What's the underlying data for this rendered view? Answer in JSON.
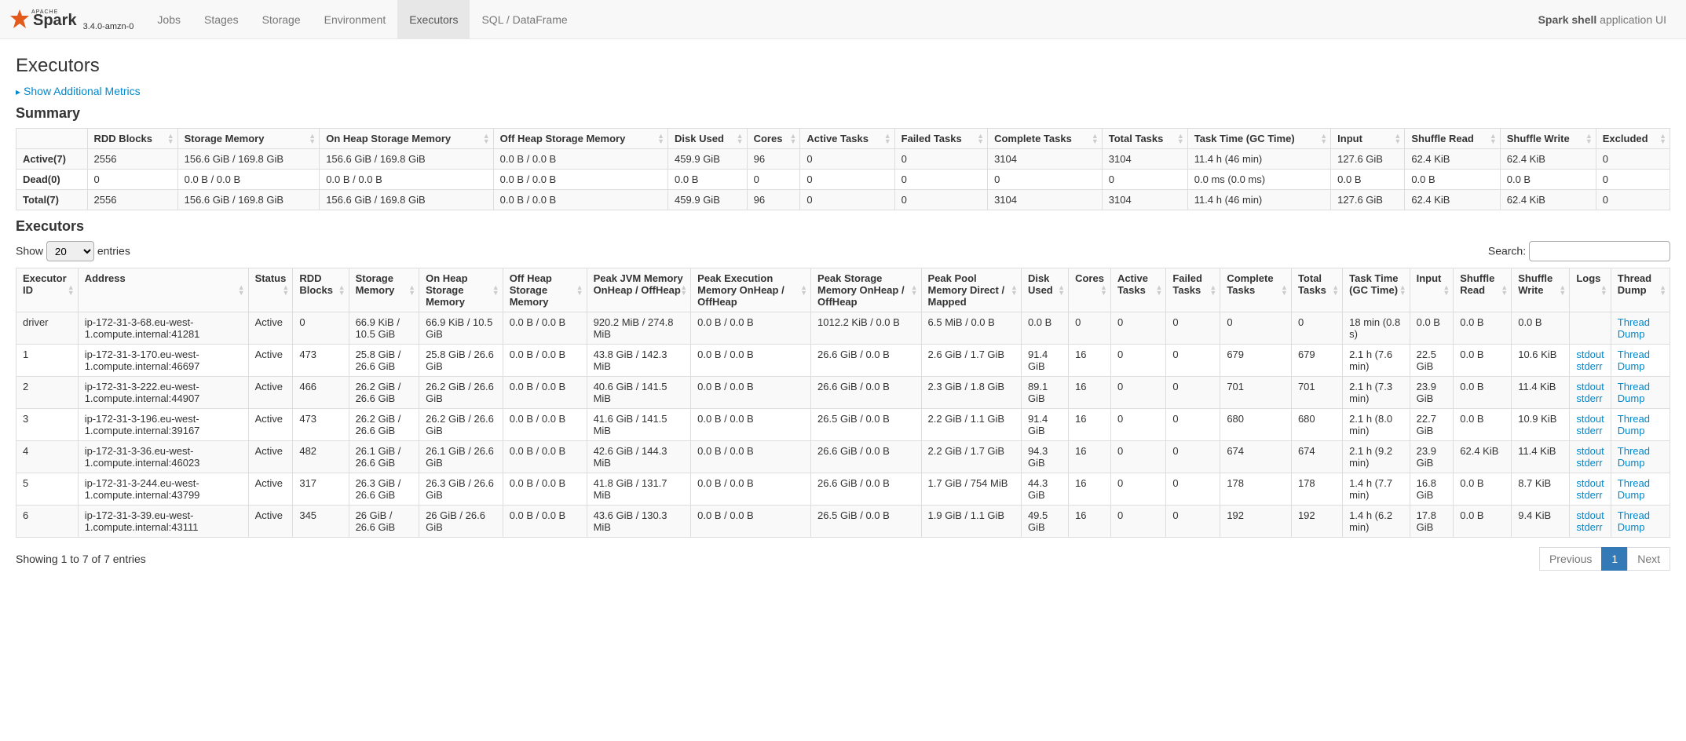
{
  "brand": {
    "apache": "APACHE",
    "name": "Spark",
    "version": "3.4.0-amzn-0"
  },
  "nav": {
    "tabs": [
      "Jobs",
      "Stages",
      "Storage",
      "Environment",
      "Executors",
      "SQL / DataFrame"
    ],
    "active_index": 4
  },
  "app_label": {
    "name": "Spark shell",
    "suffix": "application UI"
  },
  "page_title": "Executors",
  "show_metrics_label": "Show Additional Metrics",
  "summary": {
    "heading": "Summary",
    "columns": [
      "",
      "RDD Blocks",
      "Storage Memory",
      "On Heap Storage Memory",
      "Off Heap Storage Memory",
      "Disk Used",
      "Cores",
      "Active Tasks",
      "Failed Tasks",
      "Complete Tasks",
      "Total Tasks",
      "Task Time (GC Time)",
      "Input",
      "Shuffle Read",
      "Shuffle Write",
      "Excluded"
    ],
    "rows": [
      [
        "Active(7)",
        "2556",
        "156.6 GiB / 169.8 GiB",
        "156.6 GiB / 169.8 GiB",
        "0.0 B / 0.0 B",
        "459.9 GiB",
        "96",
        "0",
        "0",
        "3104",
        "3104",
        "11.4 h (46 min)",
        "127.6 GiB",
        "62.4 KiB",
        "62.4 KiB",
        "0"
      ],
      [
        "Dead(0)",
        "0",
        "0.0 B / 0.0 B",
        "0.0 B / 0.0 B",
        "0.0 B / 0.0 B",
        "0.0 B",
        "0",
        "0",
        "0",
        "0",
        "0",
        "0.0 ms (0.0 ms)",
        "0.0 B",
        "0.0 B",
        "0.0 B",
        "0"
      ],
      [
        "Total(7)",
        "2556",
        "156.6 GiB / 169.8 GiB",
        "156.6 GiB / 169.8 GiB",
        "0.0 B / 0.0 B",
        "459.9 GiB",
        "96",
        "0",
        "0",
        "3104",
        "3104",
        "11.4 h (46 min)",
        "127.6 GiB",
        "62.4 KiB",
        "62.4 KiB",
        "0"
      ]
    ]
  },
  "executors_section": {
    "heading": "Executors",
    "show_label_prefix": "Show",
    "show_label_suffix": "entries",
    "page_size": "20",
    "search_label": "Search:",
    "columns": [
      "Executor ID",
      "Address",
      "Status",
      "RDD Blocks",
      "Storage Memory",
      "On Heap Storage Memory",
      "Off Heap Storage Memory",
      "Peak JVM Memory OnHeap / OffHeap",
      "Peak Execution Memory OnHeap / OffHeap",
      "Peak Storage Memory OnHeap / OffHeap",
      "Peak Pool Memory Direct / Mapped",
      "Disk Used",
      "Cores",
      "Active Tasks",
      "Failed Tasks",
      "Complete Tasks",
      "Total Tasks",
      "Task Time (GC Time)",
      "Input",
      "Shuffle Read",
      "Shuffle Write",
      "Logs",
      "Thread Dump"
    ],
    "rows": [
      {
        "id": "driver",
        "addr": "ip-172-31-3-68.eu-west-1.compute.internal:41281",
        "status": "Active",
        "rdd": "0",
        "storage": "66.9 KiB / 10.5 GiB",
        "onheap": "66.9 KiB / 10.5 GiB",
        "offheap": "0.0 B / 0.0 B",
        "peak_jvm": "920.2 MiB / 274.8 MiB",
        "peak_exec": "0.0 B / 0.0 B",
        "peak_store": "1012.2 KiB / 0.0 B",
        "peak_pool": "6.5 MiB / 0.0 B",
        "disk": "0.0 B",
        "cores": "0",
        "active": "0",
        "failed": "0",
        "complete": "0",
        "total": "0",
        "task": "18 min (0.8 s)",
        "input": "0.0 B",
        "sr": "0.0 B",
        "sw": "0.0 B",
        "logs": [],
        "thread": "Thread Dump"
      },
      {
        "id": "1",
        "addr": "ip-172-31-3-170.eu-west-1.compute.internal:46697",
        "status": "Active",
        "rdd": "473",
        "storage": "25.8 GiB / 26.6 GiB",
        "onheap": "25.8 GiB / 26.6 GiB",
        "offheap": "0.0 B / 0.0 B",
        "peak_jvm": "43.8 GiB / 142.3 MiB",
        "peak_exec": "0.0 B / 0.0 B",
        "peak_store": "26.6 GiB / 0.0 B",
        "peak_pool": "2.6 GiB / 1.7 GiB",
        "disk": "91.4 GiB",
        "cores": "16",
        "active": "0",
        "failed": "0",
        "complete": "679",
        "total": "679",
        "task": "2.1 h (7.6 min)",
        "input": "22.5 GiB",
        "sr": "0.0 B",
        "sw": "10.6 KiB",
        "logs": [
          "stdout",
          "stderr"
        ],
        "thread": "Thread Dump"
      },
      {
        "id": "2",
        "addr": "ip-172-31-3-222.eu-west-1.compute.internal:44907",
        "status": "Active",
        "rdd": "466",
        "storage": "26.2 GiB / 26.6 GiB",
        "onheap": "26.2 GiB / 26.6 GiB",
        "offheap": "0.0 B / 0.0 B",
        "peak_jvm": "40.6 GiB / 141.5 MiB",
        "peak_exec": "0.0 B / 0.0 B",
        "peak_store": "26.6 GiB / 0.0 B",
        "peak_pool": "2.3 GiB / 1.8 GiB",
        "disk": "89.1 GiB",
        "cores": "16",
        "active": "0",
        "failed": "0",
        "complete": "701",
        "total": "701",
        "task": "2.1 h (7.3 min)",
        "input": "23.9 GiB",
        "sr": "0.0 B",
        "sw": "11.4 KiB",
        "logs": [
          "stdout",
          "stderr"
        ],
        "thread": "Thread Dump"
      },
      {
        "id": "3",
        "addr": "ip-172-31-3-196.eu-west-1.compute.internal:39167",
        "status": "Active",
        "rdd": "473",
        "storage": "26.2 GiB / 26.6 GiB",
        "onheap": "26.2 GiB / 26.6 GiB",
        "offheap": "0.0 B / 0.0 B",
        "peak_jvm": "41.6 GiB / 141.5 MiB",
        "peak_exec": "0.0 B / 0.0 B",
        "peak_store": "26.5 GiB / 0.0 B",
        "peak_pool": "2.2 GiB / 1.1 GiB",
        "disk": "91.4 GiB",
        "cores": "16",
        "active": "0",
        "failed": "0",
        "complete": "680",
        "total": "680",
        "task": "2.1 h (8.0 min)",
        "input": "22.7 GiB",
        "sr": "0.0 B",
        "sw": "10.9 KiB",
        "logs": [
          "stdout",
          "stderr"
        ],
        "thread": "Thread Dump"
      },
      {
        "id": "4",
        "addr": "ip-172-31-3-36.eu-west-1.compute.internal:46023",
        "status": "Active",
        "rdd": "482",
        "storage": "26.1 GiB / 26.6 GiB",
        "onheap": "26.1 GiB / 26.6 GiB",
        "offheap": "0.0 B / 0.0 B",
        "peak_jvm": "42.6 GiB / 144.3 MiB",
        "peak_exec": "0.0 B / 0.0 B",
        "peak_store": "26.6 GiB / 0.0 B",
        "peak_pool": "2.2 GiB / 1.7 GiB",
        "disk": "94.3 GiB",
        "cores": "16",
        "active": "0",
        "failed": "0",
        "complete": "674",
        "total": "674",
        "task": "2.1 h (9.2 min)",
        "input": "23.9 GiB",
        "sr": "62.4 KiB",
        "sw": "11.4 KiB",
        "logs": [
          "stdout",
          "stderr"
        ],
        "thread": "Thread Dump"
      },
      {
        "id": "5",
        "addr": "ip-172-31-3-244.eu-west-1.compute.internal:43799",
        "status": "Active",
        "rdd": "317",
        "storage": "26.3 GiB / 26.6 GiB",
        "onheap": "26.3 GiB / 26.6 GiB",
        "offheap": "0.0 B / 0.0 B",
        "peak_jvm": "41.8 GiB / 131.7 MiB",
        "peak_exec": "0.0 B / 0.0 B",
        "peak_store": "26.6 GiB / 0.0 B",
        "peak_pool": "1.7 GiB / 754 MiB",
        "disk": "44.3 GiB",
        "cores": "16",
        "active": "0",
        "failed": "0",
        "complete": "178",
        "total": "178",
        "task": "1.4 h (7.7 min)",
        "input": "16.8 GiB",
        "sr": "0.0 B",
        "sw": "8.7 KiB",
        "logs": [
          "stdout",
          "stderr"
        ],
        "thread": "Thread Dump"
      },
      {
        "id": "6",
        "addr": "ip-172-31-3-39.eu-west-1.compute.internal:43111",
        "status": "Active",
        "rdd": "345",
        "storage": "26 GiB / 26.6 GiB",
        "onheap": "26 GiB / 26.6 GiB",
        "offheap": "0.0 B / 0.0 B",
        "peak_jvm": "43.6 GiB / 130.3 MiB",
        "peak_exec": "0.0 B / 0.0 B",
        "peak_store": "26.5 GiB / 0.0 B",
        "peak_pool": "1.9 GiB / 1.1 GiB",
        "disk": "49.5 GiB",
        "cores": "16",
        "active": "0",
        "failed": "0",
        "complete": "192",
        "total": "192",
        "task": "1.4 h (6.2 min)",
        "input": "17.8 GiB",
        "sr": "0.0 B",
        "sw": "9.4 KiB",
        "logs": [
          "stdout",
          "stderr"
        ],
        "thread": "Thread Dump"
      }
    ],
    "footer_info": "Showing 1 to 7 of 7 entries",
    "pagination": {
      "previous": "Previous",
      "pages": [
        "1"
      ],
      "active_page": "1",
      "next": "Next"
    }
  },
  "colors": {
    "link": "#0088cc",
    "navbar_bg": "#f8f8f8",
    "active_tab_bg": "#e7e7e7",
    "stripe": "#f9f9f9",
    "border": "#ddd",
    "primary": "#337ab7"
  }
}
